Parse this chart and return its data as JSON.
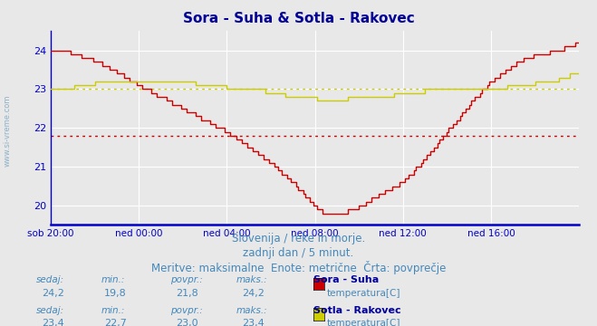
{
  "title": "Sora - Suha & Sotla - Rakovec",
  "title_color": "#000099",
  "title_fontsize": 11,
  "background_color": "#e8e8e8",
  "plot_bg_color": "#e8e8e8",
  "grid_color": "#ffffff",
  "axis_color": "#0000cc",
  "ylim": [
    19.5,
    24.5
  ],
  "yticks": [
    20,
    21,
    22,
    23,
    24
  ],
  "xlim": [
    0,
    288
  ],
  "xtick_labels": [
    "sob 20:00",
    "ned 00:00",
    "ned 04:00",
    "ned 08:00",
    "ned 12:00",
    "ned 16:00"
  ],
  "xtick_positions": [
    0,
    48,
    96,
    144,
    192,
    240
  ],
  "hline1_y": 21.8,
  "hline1_color": "#cc0000",
  "hline2_y": 23.0,
  "hline2_color": "#cccc00",
  "line1_color": "#cc0000",
  "line2_color": "#cccc00",
  "subtitle_lines": [
    "Slovenija / reke in morje.",
    "zadnji dan / 5 minut.",
    "Meritve: maksimalne  Enote: metrične  Črta: povprečje"
  ],
  "subtitle_color": "#4488bb",
  "subtitle_fontsize": 8.5,
  "legend": [
    {
      "label_bold": "Sora - Suha",
      "label": "temperatura[C]",
      "color": "#cc0000",
      "sedaj": "24,2",
      "min": "19,8",
      "povpr": "21,8",
      "maks": "24,2"
    },
    {
      "label_bold": "Sotla - Rakovec",
      "label": "temperatura[C]",
      "color": "#cccc00",
      "sedaj": "23,4",
      "min": "22,7",
      "povpr": "23,0",
      "maks": "23,4"
    }
  ],
  "left_label": "www.si-vreme.com",
  "sora_kx": [
    0,
    10,
    20,
    30,
    48,
    60,
    72,
    84,
    96,
    108,
    120,
    132,
    140,
    144,
    148,
    152,
    156,
    160,
    168,
    180,
    192,
    204,
    216,
    228,
    240,
    252,
    262,
    272,
    283,
    288
  ],
  "sora_ky": [
    24.0,
    23.95,
    23.8,
    23.6,
    23.1,
    22.8,
    22.5,
    22.2,
    21.9,
    21.5,
    21.1,
    20.6,
    20.2,
    19.95,
    19.85,
    19.82,
    19.8,
    19.82,
    19.95,
    20.3,
    20.6,
    21.2,
    21.9,
    22.6,
    23.2,
    23.6,
    23.85,
    23.95,
    24.1,
    24.2
  ],
  "sotla_kx": [
    0,
    12,
    24,
    36,
    48,
    60,
    72,
    84,
    96,
    108,
    116,
    124,
    132,
    140,
    144,
    148,
    156,
    168,
    180,
    192,
    204,
    216,
    228,
    240,
    248,
    256,
    264,
    276,
    283,
    288
  ],
  "sotla_ky": [
    23.0,
    23.05,
    23.15,
    23.2,
    23.25,
    23.25,
    23.2,
    23.1,
    23.05,
    23.0,
    22.95,
    22.88,
    22.82,
    22.78,
    22.75,
    22.72,
    22.72,
    22.78,
    22.82,
    22.88,
    22.95,
    23.0,
    23.05,
    23.0,
    23.05,
    23.1,
    23.15,
    23.25,
    23.35,
    23.4
  ]
}
